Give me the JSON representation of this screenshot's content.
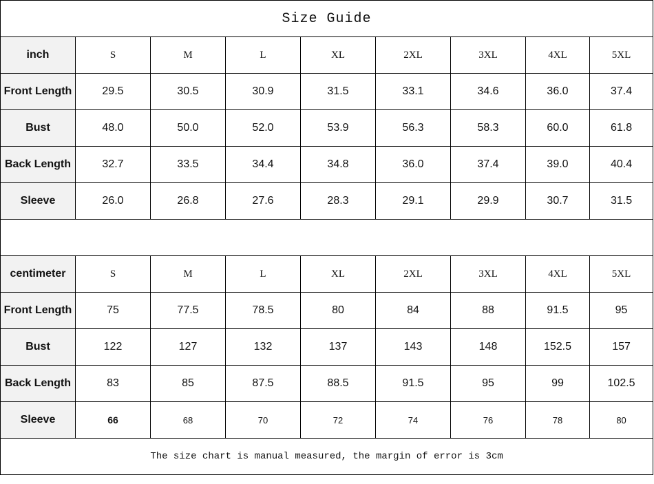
{
  "title": "Size Guide",
  "sizes": [
    "S",
    "M",
    "L",
    "XL",
    "2XL",
    "3XL",
    "4XL",
    "5XL"
  ],
  "inch": {
    "unit_label": "inch",
    "rows": [
      {
        "label": "Front Length",
        "values": [
          "29.5",
          "30.5",
          "30.9",
          "31.5",
          "33.1",
          "34.6",
          "36.0",
          "37.4"
        ]
      },
      {
        "label": "Bust",
        "values": [
          "48.0",
          "50.0",
          "52.0",
          "53.9",
          "56.3",
          "58.3",
          "60.0",
          "61.8"
        ]
      },
      {
        "label": "Back Length",
        "values": [
          "32.7",
          "33.5",
          "34.4",
          "34.8",
          "36.0",
          "37.4",
          "39.0",
          "40.4"
        ]
      },
      {
        "label": "Sleeve",
        "values": [
          "26.0",
          "26.8",
          "27.6",
          "28.3",
          "29.1",
          "29.9",
          "30.7",
          "31.5"
        ]
      }
    ]
  },
  "cm": {
    "unit_label": "centimeter",
    "rows": [
      {
        "label": "Front Length",
        "values": [
          "75",
          "77.5",
          "78.5",
          "80",
          "84",
          "88",
          "91.5",
          "95"
        ]
      },
      {
        "label": "Bust",
        "values": [
          "122",
          "127",
          "132",
          "137",
          "143",
          "148",
          "152.5",
          "157"
        ]
      },
      {
        "label": "Back Length",
        "values": [
          "83",
          "85",
          "87.5",
          "88.5",
          "91.5",
          "95",
          "99",
          "102.5"
        ]
      },
      {
        "label": "Sleeve",
        "values": [
          "66",
          "68",
          "70",
          "72",
          "74",
          "76",
          "78",
          "80"
        ]
      }
    ]
  },
  "note": "The size chart is manual measured, the margin of error is 3cm"
}
